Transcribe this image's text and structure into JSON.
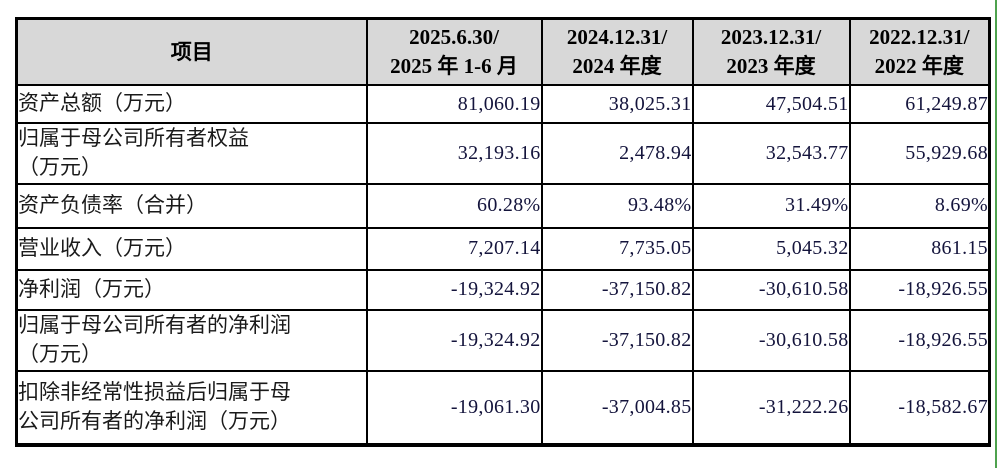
{
  "table": {
    "header": {
      "item_label": "项目",
      "periods": [
        "2025.6.30/\n2025 年 1-6 月",
        "2024.12.31/\n2024 年度",
        "2023.12.31/\n2023 年度",
        "2022.12.31/\n2022 年度"
      ]
    },
    "rows": [
      {
        "label": "资产总额（万元）",
        "values": [
          "81,060.19",
          "38,025.31",
          "47,504.51",
          "61,249.87"
        ]
      },
      {
        "label": "归属于母公司所有者权益\n（万元）",
        "values": [
          "32,193.16",
          "2,478.94",
          "32,543.77",
          "55,929.68"
        ]
      },
      {
        "label": "资产负债率（合并）",
        "values": [
          "60.28%",
          "93.48%",
          "31.49%",
          "8.69%"
        ]
      },
      {
        "label": "营业收入（万元）",
        "values": [
          "7,207.14",
          "7,735.05",
          "5,045.32",
          "861.15"
        ]
      },
      {
        "label": "净利润（万元）",
        "values": [
          "-19,324.92",
          "-37,150.82",
          "-30,610.58",
          "-18,926.55"
        ]
      },
      {
        "label": "归属于母公司所有者的净利润\n（万元）",
        "values": [
          "-19,324.92",
          "-37,150.82",
          "-30,610.58",
          "-18,926.55"
        ]
      },
      {
        "label": "扣除非经常性损益后归属于母\n公司所有者的净利润（万元）",
        "values": [
          "-19,061.30",
          "-37,004.85",
          "-31,222.26",
          "-18,582.67"
        ]
      }
    ],
    "colors": {
      "header_bg": "#d8d8d8",
      "border": "#000000",
      "scan_line_green": "#4ea24e"
    }
  }
}
